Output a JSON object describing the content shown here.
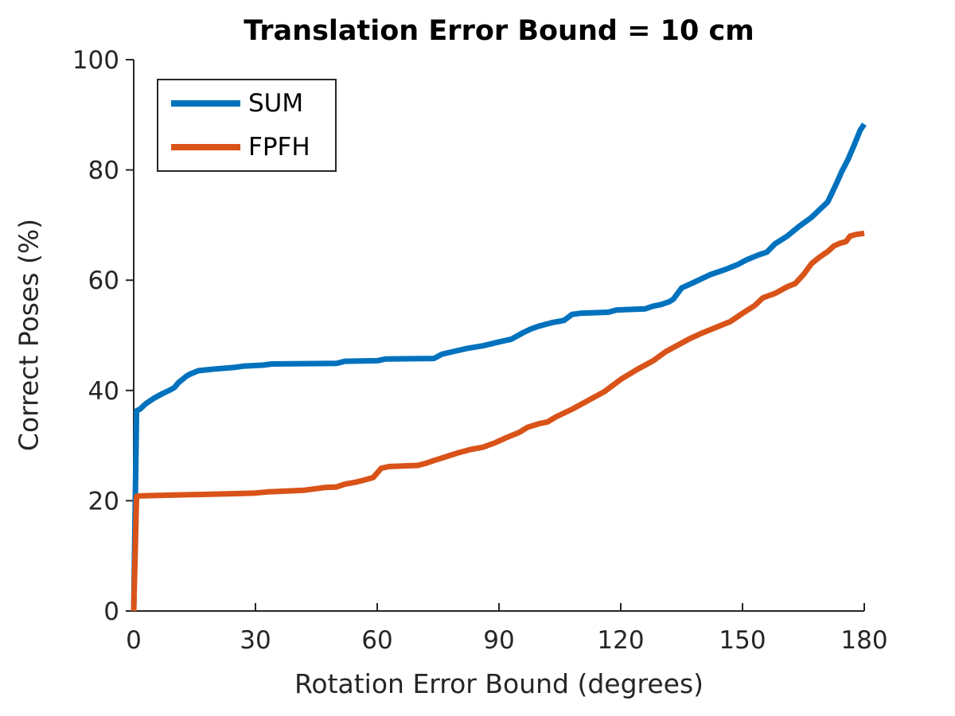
{
  "chart_data": {
    "type": "line",
    "title": "Translation Error Bound = 10 cm",
    "xlabel": "Rotation Error Bound (degrees)",
    "ylabel": "Correct Poses (%)",
    "xlim": [
      0,
      180
    ],
    "ylim": [
      0,
      100
    ],
    "xticks": [
      0,
      30,
      60,
      90,
      120,
      150,
      180
    ],
    "yticks": [
      0,
      20,
      40,
      60,
      80,
      100
    ],
    "grid": false,
    "legend": {
      "position": "top-left-inside",
      "entries": [
        "SUM",
        "FPFH"
      ]
    },
    "axis_color": "#262626",
    "background": "#ffffff",
    "series": [
      {
        "name": "SUM",
        "color": "#0072BD",
        "points": [
          [
            0,
            0
          ],
          [
            0.7,
            36.3
          ],
          [
            1.5,
            36.6
          ],
          [
            3,
            37.6
          ],
          [
            5,
            38.6
          ],
          [
            7,
            39.4
          ],
          [
            9,
            40.1
          ],
          [
            10,
            40.5
          ],
          [
            11,
            41.4
          ],
          [
            13,
            42.6
          ],
          [
            14,
            43.0
          ],
          [
            16,
            43.6
          ],
          [
            20,
            43.9
          ],
          [
            25,
            44.2
          ],
          [
            27,
            44.4
          ],
          [
            32,
            44.6
          ],
          [
            34,
            44.8
          ],
          [
            50,
            44.9
          ],
          [
            52,
            45.3
          ],
          [
            60,
            45.4
          ],
          [
            62,
            45.7
          ],
          [
            74,
            45.8
          ],
          [
            76,
            46.6
          ],
          [
            79,
            47.1
          ],
          [
            82,
            47.6
          ],
          [
            86,
            48.1
          ],
          [
            90,
            48.8
          ],
          [
            93,
            49.3
          ],
          [
            96,
            50.5
          ],
          [
            98,
            51.2
          ],
          [
            100,
            51.7
          ],
          [
            103,
            52.3
          ],
          [
            106,
            52.7
          ],
          [
            108,
            53.8
          ],
          [
            110,
            54.0
          ],
          [
            117,
            54.2
          ],
          [
            119,
            54.6
          ],
          [
            126,
            54.8
          ],
          [
            128,
            55.3
          ],
          [
            130,
            55.6
          ],
          [
            132,
            56.1
          ],
          [
            133,
            56.6
          ],
          [
            135,
            58.6
          ],
          [
            138,
            59.6
          ],
          [
            142,
            61.0
          ],
          [
            146,
            62.0
          ],
          [
            149,
            62.9
          ],
          [
            151,
            63.7
          ],
          [
            154,
            64.6
          ],
          [
            156,
            65.1
          ],
          [
            158,
            66.6
          ],
          [
            161,
            68.0
          ],
          [
            164,
            69.8
          ],
          [
            167,
            71.4
          ],
          [
            169,
            72.8
          ],
          [
            171,
            74.2
          ],
          [
            173,
            77.3
          ],
          [
            174.5,
            79.8
          ],
          [
            176,
            81.9
          ],
          [
            177.5,
            84.5
          ],
          [
            179,
            87.2
          ],
          [
            180,
            88.3
          ]
        ]
      },
      {
        "name": "FPFH",
        "color": "#D95319",
        "points": [
          [
            0,
            0
          ],
          [
            0.7,
            20.8
          ],
          [
            2,
            20.9
          ],
          [
            8,
            21.0
          ],
          [
            14,
            21.1
          ],
          [
            20,
            21.2
          ],
          [
            26,
            21.3
          ],
          [
            30,
            21.4
          ],
          [
            33,
            21.6
          ],
          [
            36,
            21.7
          ],
          [
            42,
            21.9
          ],
          [
            45,
            22.2
          ],
          [
            47,
            22.4
          ],
          [
            50,
            22.5
          ],
          [
            52,
            23.0
          ],
          [
            55,
            23.4
          ],
          [
            57,
            23.8
          ],
          [
            59,
            24.2
          ],
          [
            61,
            25.9
          ],
          [
            63,
            26.2
          ],
          [
            70,
            26.4
          ],
          [
            72,
            26.8
          ],
          [
            74,
            27.3
          ],
          [
            77,
            28.0
          ],
          [
            80,
            28.7
          ],
          [
            83,
            29.3
          ],
          [
            86,
            29.7
          ],
          [
            89,
            30.5
          ],
          [
            92,
            31.5
          ],
          [
            95,
            32.4
          ],
          [
            97,
            33.3
          ],
          [
            100,
            34.0
          ],
          [
            102,
            34.3
          ],
          [
            104,
            35.2
          ],
          [
            108,
            36.6
          ],
          [
            112,
            38.2
          ],
          [
            116,
            39.8
          ],
          [
            120,
            42.0
          ],
          [
            124,
            43.8
          ],
          [
            128,
            45.4
          ],
          [
            131,
            47.0
          ],
          [
            134,
            48.2
          ],
          [
            137,
            49.4
          ],
          [
            140,
            50.4
          ],
          [
            143,
            51.3
          ],
          [
            147,
            52.5
          ],
          [
            150,
            54.0
          ],
          [
            153,
            55.4
          ],
          [
            155,
            56.8
          ],
          [
            158,
            57.6
          ],
          [
            161,
            58.8
          ],
          [
            163,
            59.4
          ],
          [
            165,
            61.0
          ],
          [
            167,
            63.0
          ],
          [
            169,
            64.2
          ],
          [
            171,
            65.2
          ],
          [
            172.5,
            66.2
          ],
          [
            174,
            66.7
          ],
          [
            175.5,
            67.0
          ],
          [
            176.5,
            68.0
          ],
          [
            178,
            68.3
          ],
          [
            180,
            68.5
          ]
        ]
      }
    ]
  }
}
